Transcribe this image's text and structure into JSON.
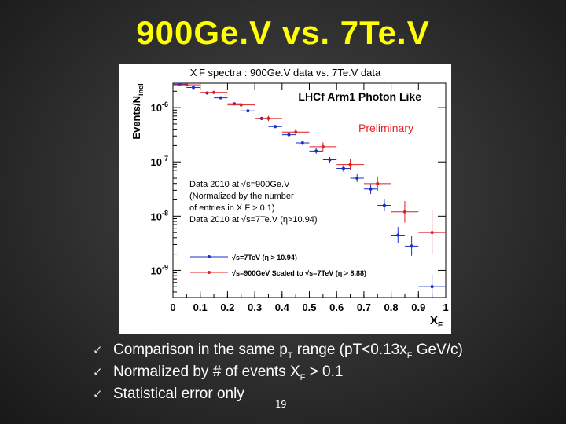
{
  "slide": {
    "title": "900Ge.V vs. 7Te.V",
    "page_number": "19",
    "bullets": [
      {
        "pre": "Comparison in the same p",
        "sub1": "T",
        "mid": " range (pT<0.13x",
        "sub2": "F",
        "post": " GeV/c)"
      },
      {
        "pre": "Normalized by # of events X",
        "sub1": "F",
        "mid": " > 0.1",
        "sub2": "",
        "post": ""
      },
      {
        "pre": "Statistical error only",
        "sub1": "",
        "mid": "",
        "sub2": "",
        "post": ""
      }
    ]
  },
  "chart_data": {
    "type": "scatter",
    "title": "X F spectra : 900Ge.V data vs. 7Te.V data",
    "plot_label": "LHCf Arm1 Photon Like",
    "preliminary": "Preliminary",
    "xlabel": "X",
    "xlabel_sub": "F",
    "ylabel": "Events/N",
    "ylabel_sub": "inel",
    "xlim": [
      0,
      1
    ],
    "ylim_log10": [
      -9.5,
      -5.55
    ],
    "xticks": [
      {
        "v": 0,
        "label": "0"
      },
      {
        "v": 0.1,
        "label": "0.1"
      },
      {
        "v": 0.2,
        "label": "0.2"
      },
      {
        "v": 0.3,
        "label": "0.3"
      },
      {
        "v": 0.4,
        "label": "0.4"
      },
      {
        "v": 0.5,
        "label": "0.5"
      },
      {
        "v": 0.6,
        "label": "0.6"
      },
      {
        "v": 0.7,
        "label": "0.7"
      },
      {
        "v": 0.8,
        "label": "0.8"
      },
      {
        "v": 0.9,
        "label": "0.9"
      },
      {
        "v": 1,
        "label": "1"
      }
    ],
    "yticks": [
      {
        "e": -6,
        "label": "10",
        "exp": "-6"
      },
      {
        "e": -7,
        "label": "10",
        "exp": "-7"
      },
      {
        "e": -8,
        "label": "10",
        "exp": "-8"
      },
      {
        "e": -9,
        "label": "10",
        "exp": "-9"
      }
    ],
    "annotation_lines": [
      "Data 2010 at √s=900Ge.V",
      "(Normalized by the number",
      " of entries in X F > 0.1)",
      "Data 2010 at √s=7Te.V (η>10.94)"
    ],
    "colors": {
      "blue": "#1a2fc8",
      "red": "#e02020"
    },
    "series": [
      {
        "name": "√s=7TeV (η > 10.94)",
        "color": "blue",
        "points": [
          {
            "x": 0.025,
            "y": -5.57,
            "xe": 0.025,
            "ye": 0.02
          },
          {
            "x": 0.075,
            "y": -5.63,
            "xe": 0.025,
            "ye": 0.02
          },
          {
            "x": 0.125,
            "y": -5.73,
            "xe": 0.025,
            "ye": 0.02
          },
          {
            "x": 0.175,
            "y": -5.82,
            "xe": 0.025,
            "ye": 0.02
          },
          {
            "x": 0.225,
            "y": -5.93,
            "xe": 0.025,
            "ye": 0.02
          },
          {
            "x": 0.275,
            "y": -6.06,
            "xe": 0.025,
            "ye": 0.03
          },
          {
            "x": 0.325,
            "y": -6.2,
            "xe": 0.025,
            "ye": 0.03
          },
          {
            "x": 0.375,
            "y": -6.35,
            "xe": 0.025,
            "ye": 0.03
          },
          {
            "x": 0.425,
            "y": -6.5,
            "xe": 0.025,
            "ye": 0.04
          },
          {
            "x": 0.475,
            "y": -6.65,
            "xe": 0.025,
            "ye": 0.04
          },
          {
            "x": 0.525,
            "y": -6.8,
            "xe": 0.025,
            "ye": 0.05
          },
          {
            "x": 0.575,
            "y": -6.96,
            "xe": 0.025,
            "ye": 0.05
          },
          {
            "x": 0.625,
            "y": -7.12,
            "xe": 0.025,
            "ye": 0.06
          },
          {
            "x": 0.675,
            "y": -7.3,
            "xe": 0.025,
            "ye": 0.07
          },
          {
            "x": 0.725,
            "y": -7.5,
            "xe": 0.025,
            "ye": 0.09
          },
          {
            "x": 0.775,
            "y": -7.8,
            "xe": 0.025,
            "ye": 0.11
          },
          {
            "x": 0.825,
            "y": -8.35,
            "xe": 0.025,
            "ye": 0.15
          },
          {
            "x": 0.875,
            "y": -8.55,
            "xe": 0.025,
            "ye": 0.18
          },
          {
            "x": 0.95,
            "y": -9.3,
            "xe": 0.05,
            "ye": 0.22
          }
        ]
      },
      {
        "name": "√s=900GeV Scaled to √s=7TeV (η > 8.88)",
        "color": "red",
        "points": [
          {
            "x": 0.05,
            "y": -5.58,
            "xe": 0.05,
            "ye": 0.03
          },
          {
            "x": 0.15,
            "y": -5.72,
            "xe": 0.05,
            "ye": 0.03
          },
          {
            "x": 0.25,
            "y": -5.95,
            "xe": 0.05,
            "ye": 0.04
          },
          {
            "x": 0.35,
            "y": -6.2,
            "xe": 0.05,
            "ye": 0.05
          },
          {
            "x": 0.45,
            "y": -6.45,
            "xe": 0.05,
            "ye": 0.06
          },
          {
            "x": 0.55,
            "y": -6.72,
            "xe": 0.05,
            "ye": 0.08
          },
          {
            "x": 0.65,
            "y": -7.05,
            "xe": 0.05,
            "ye": 0.1
          },
          {
            "x": 0.75,
            "y": -7.4,
            "xe": 0.05,
            "ye": 0.13
          },
          {
            "x": 0.85,
            "y": -7.92,
            "xe": 0.05,
            "ye": 0.2
          },
          {
            "x": 0.95,
            "y": -8.3,
            "xe": 0.05,
            "ye": 0.4
          }
        ]
      }
    ],
    "legend_position": "bottom-left"
  }
}
